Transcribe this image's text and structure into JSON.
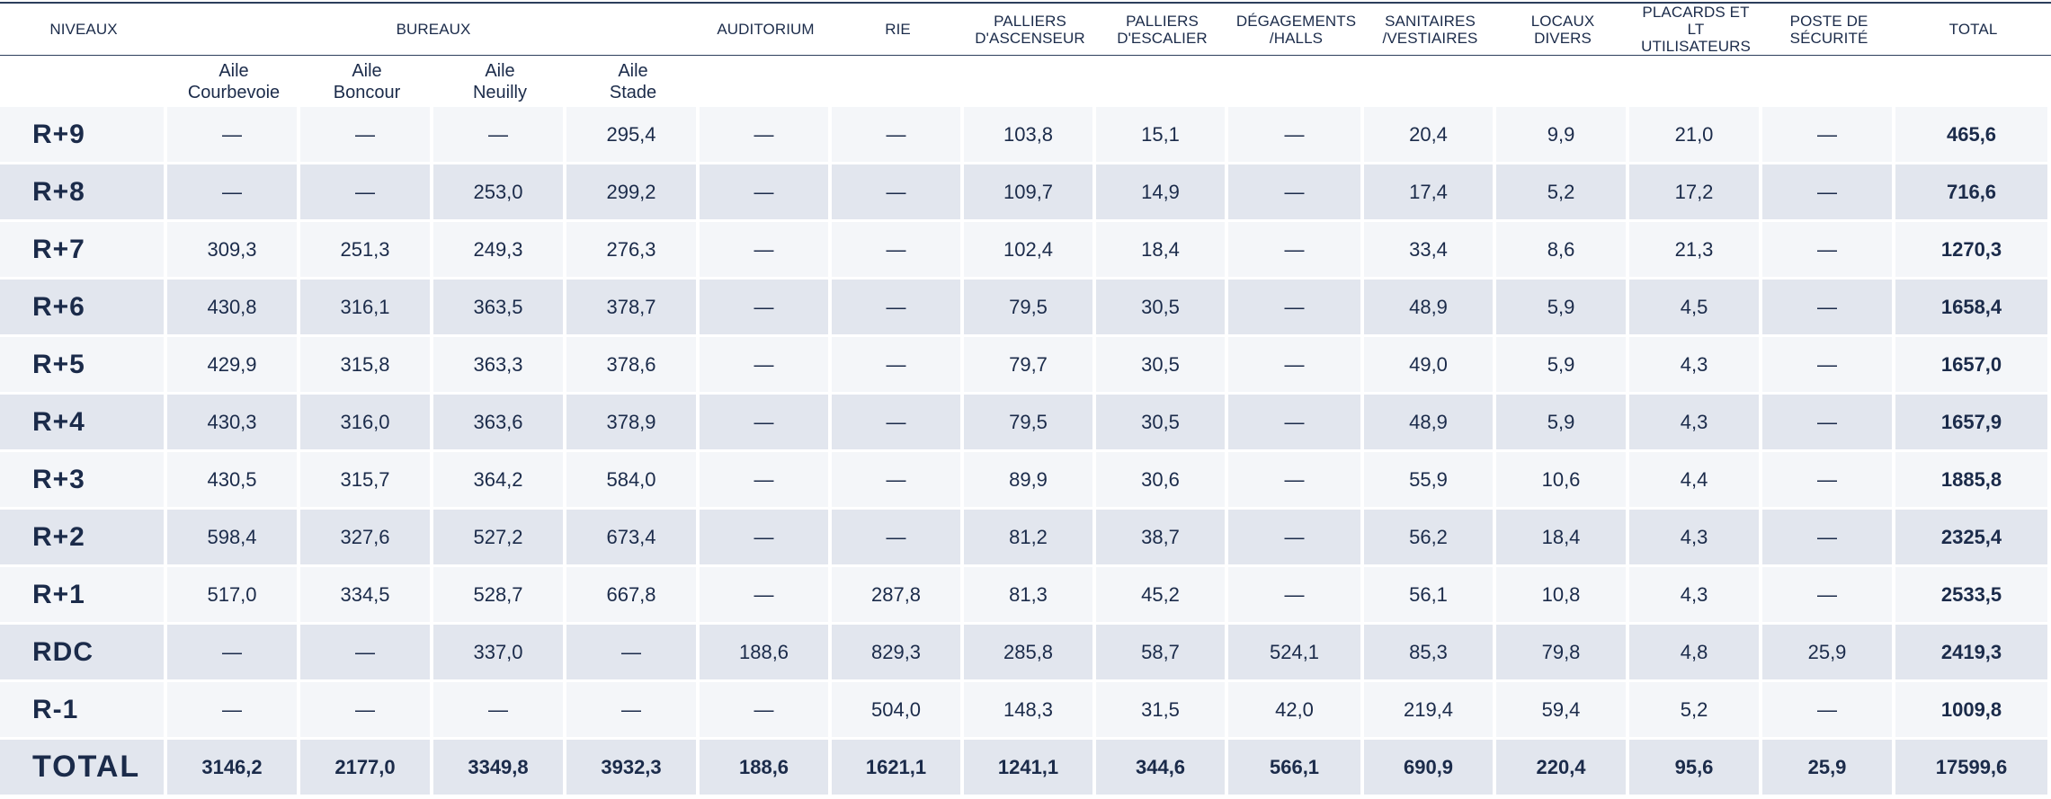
{
  "headers": {
    "niveaux": "NIVEAUX",
    "bureaux": "BUREAUX",
    "auditorium": "AUDITORIUM",
    "rie": "RIE",
    "palliers_ascenseur": [
      "PALLIERS",
      "D'ASCENSEUR"
    ],
    "palliers_escalier": [
      "PALLIERS",
      "D'ESCALIER"
    ],
    "degagements": [
      "DÉGAGEMENTS",
      "/HALLS"
    ],
    "sanitaires": [
      "SANITAIRES",
      "/VESTIAIRES"
    ],
    "locaux": [
      "LOCAUX",
      "DIVERS"
    ],
    "placards": [
      "PLACARDS ET LT",
      "UTILISATEURS"
    ],
    "poste": [
      "POSTE DE",
      "SÉCURITÉ"
    ],
    "total": "TOTAL"
  },
  "subheaders": [
    [
      "Aile",
      "Courbevoie"
    ],
    [
      "Aile",
      "Boncour"
    ],
    [
      "Aile",
      "Neuilly"
    ],
    [
      "Aile",
      "Stade"
    ]
  ],
  "rows": [
    {
      "level": "R+9",
      "cells": [
        "—",
        "—",
        "—",
        "295,4",
        "—",
        "—",
        "103,8",
        "15,1",
        "—",
        "20,4",
        "9,9",
        "21,0",
        "—"
      ],
      "total": "465,6"
    },
    {
      "level": "R+8",
      "cells": [
        "—",
        "—",
        "253,0",
        "299,2",
        "—",
        "—",
        "109,7",
        "14,9",
        "—",
        "17,4",
        "5,2",
        "17,2",
        "—"
      ],
      "total": "716,6"
    },
    {
      "level": "R+7",
      "cells": [
        "309,3",
        "251,3",
        "249,3",
        "276,3",
        "—",
        "—",
        "102,4",
        "18,4",
        "—",
        "33,4",
        "8,6",
        "21,3",
        "—"
      ],
      "total": "1270,3"
    },
    {
      "level": "R+6",
      "cells": [
        "430,8",
        "316,1",
        "363,5",
        "378,7",
        "—",
        "—",
        "79,5",
        "30,5",
        "—",
        "48,9",
        "5,9",
        "4,5",
        "—"
      ],
      "total": "1658,4"
    },
    {
      "level": "R+5",
      "cells": [
        "429,9",
        "315,8",
        "363,3",
        "378,6",
        "—",
        "—",
        "79,7",
        "30,5",
        "—",
        "49,0",
        "5,9",
        "4,3",
        "—"
      ],
      "total": "1657,0"
    },
    {
      "level": "R+4",
      "cells": [
        "430,3",
        "316,0",
        "363,6",
        "378,9",
        "—",
        "—",
        "79,5",
        "30,5",
        "—",
        "48,9",
        "5,9",
        "4,3",
        "—"
      ],
      "total": "1657,9"
    },
    {
      "level": "R+3",
      "cells": [
        "430,5",
        "315,7",
        "364,2",
        "584,0",
        "—",
        "—",
        "89,9",
        "30,6",
        "—",
        "55,9",
        "10,6",
        "4,4",
        "—"
      ],
      "total": "1885,8"
    },
    {
      "level": "R+2",
      "cells": [
        "598,4",
        "327,6",
        "527,2",
        "673,4",
        "—",
        "—",
        "81,2",
        "38,7",
        "—",
        "56,2",
        "18,4",
        "4,3",
        "—"
      ],
      "total": "2325,4"
    },
    {
      "level": "R+1",
      "cells": [
        "517,0",
        "334,5",
        "528,7",
        "667,8",
        "—",
        "287,8",
        "81,3",
        "45,2",
        "—",
        "56,1",
        "10,8",
        "4,3",
        "—"
      ],
      "total": "2533,5"
    },
    {
      "level": "RDC",
      "cells": [
        "—",
        "—",
        "337,0",
        "—",
        "188,6",
        "829,3",
        "285,8",
        "58,7",
        "524,1",
        "85,3",
        "79,8",
        "4,8",
        "25,9"
      ],
      "total": "2419,3"
    },
    {
      "level": "R-1",
      "cells": [
        "—",
        "—",
        "—",
        "—",
        "—",
        "504,0",
        "148,3",
        "31,5",
        "42,0",
        "219,4",
        "59,4",
        "5,2",
        "—"
      ],
      "total": "1009,8"
    },
    {
      "level": "TOTAL",
      "cells": [
        "3146,2",
        "2177,0",
        "3349,8",
        "3932,3",
        "188,6",
        "1621,1",
        "1241,1",
        "344,6",
        "566,1",
        "690,9",
        "220,4",
        "95,6",
        "25,9"
      ],
      "total": "17599,6"
    }
  ]
}
